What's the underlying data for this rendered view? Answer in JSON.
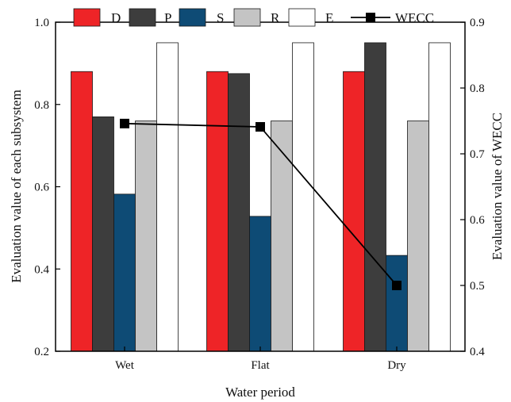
{
  "chart_data": {
    "type": "bar",
    "xlabel": "Water period",
    "ylabel": "Evaluation value of each subsystem",
    "y2label": "Evaluation value of WECC",
    "categories": [
      "Wet",
      "Flat",
      "Dry"
    ],
    "ylim": [
      0.2,
      1.0
    ],
    "y2lim": [
      0.4,
      0.9
    ],
    "yticks": [
      "0.2",
      "0.4",
      "0.6",
      "0.8",
      "1.0"
    ],
    "y2ticks": [
      "0.4",
      "0.5",
      "0.6",
      "0.7",
      "0.8",
      "0.9"
    ],
    "grid": false,
    "legend_position": "top",
    "series": [
      {
        "name": "D",
        "color": "#ee2427",
        "values": [
          0.88,
          0.88,
          0.88
        ]
      },
      {
        "name": "P",
        "color": "#3d3d3d",
        "values": [
          0.77,
          0.875,
          0.95
        ]
      },
      {
        "name": "S",
        "color": "#0e4b75",
        "values": [
          0.582,
          0.528,
          0.433
        ]
      },
      {
        "name": "R",
        "color": "#c4c4c4",
        "values": [
          0.76,
          0.76,
          0.76
        ]
      },
      {
        "name": "E",
        "color": "#ffffff",
        "values": [
          0.95,
          0.95,
          0.95
        ]
      }
    ],
    "line_series": {
      "name": "WECC",
      "axis": "right",
      "color": "#000000",
      "marker": "square",
      "values": [
        0.746,
        0.741,
        0.5
      ]
    }
  }
}
